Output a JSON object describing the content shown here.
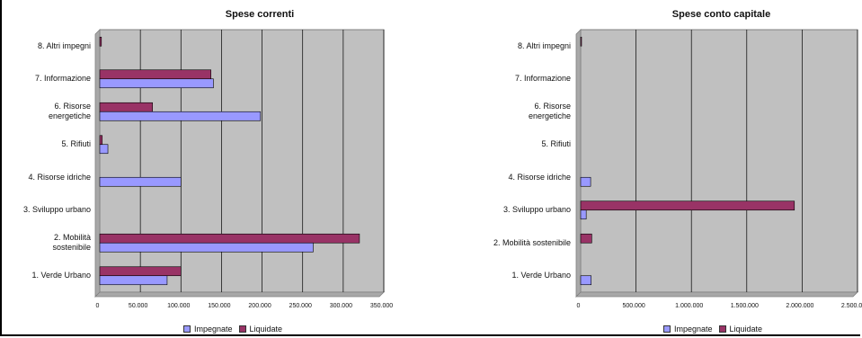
{
  "chart_data": [
    {
      "type": "bar",
      "orientation": "horizontal",
      "title": "Spese correnti",
      "categories": [
        "1. Verde Urbano",
        "2. Mobilità sostenibile",
        "3. Sviluppo urbano",
        "4. Risorse idriche",
        "5. Rifiuti",
        "6. Risorse energetiche",
        "7. Informazione",
        "8. Altri impegni"
      ],
      "series": [
        {
          "name": "Impegnate",
          "color": "#9999ff",
          "values": [
            83000,
            263000,
            0,
            100000,
            10000,
            198000,
            140000,
            0
          ]
        },
        {
          "name": "Liquidate",
          "color": "#993366",
          "values": [
            100000,
            320000,
            0,
            0,
            3000,
            65000,
            137000,
            2000
          ]
        }
      ],
      "xlim": [
        0,
        350000
      ],
      "xticks": [
        "0",
        "50.000",
        "100.000",
        "150.000",
        "200.000",
        "250.000",
        "300.000",
        "350.000"
      ],
      "legend": "bottom",
      "grid": true
    },
    {
      "type": "bar",
      "orientation": "horizontal",
      "title": "Spese conto capitale",
      "categories": [
        "1. Verde Urbano",
        "2. Mobilità sostenibile",
        "3. Sviluppo urbano",
        "4. Risorse idriche",
        "5. Rifiuti",
        "6. Risorse energetiche",
        "7. Informazione",
        "8. Altri impegni"
      ],
      "series": [
        {
          "name": "Impegnate",
          "color": "#9999ff",
          "values": [
            95000,
            0,
            50000,
            90000,
            0,
            0,
            0,
            0
          ]
        },
        {
          "name": "Liquidate",
          "color": "#993366",
          "values": [
            0,
            100000,
            1930000,
            0,
            0,
            0,
            0,
            8000
          ]
        }
      ],
      "xlim": [
        0,
        2500000
      ],
      "xticks": [
        "0",
        "500.000",
        "1.000.000",
        "1.500.000",
        "2.000.000",
        "2.500.000"
      ],
      "legend": "bottom",
      "grid": true
    }
  ],
  "left": {
    "title": "Spese correnti",
    "labels": [
      "8. Altri impegni",
      "7. Informazione",
      "6. Risorse\nenergetiche",
      "5. Rifiuti",
      "4. Risorse idriche",
      "3. Sviluppo urbano",
      "2. Mobilità\nsostenibile",
      "1. Verde Urbano"
    ]
  },
  "right": {
    "title": "Spese conto capitale",
    "labels": [
      "8. Altri impegni",
      "7. Informazione",
      "6. Risorse\nenergetiche",
      "5. Rifiuti",
      "4. Risorse idriche",
      "3. Sviluppo urbano",
      "2. Mobilità sostenibile",
      "1. Verde Urbano"
    ]
  },
  "legend": {
    "impegnate": "Impegnate",
    "liquidate": "Liquidate"
  },
  "colors": {
    "plot_bg": "#c0c0c0",
    "impegnate": "#9999ff",
    "liquidate": "#993366"
  }
}
